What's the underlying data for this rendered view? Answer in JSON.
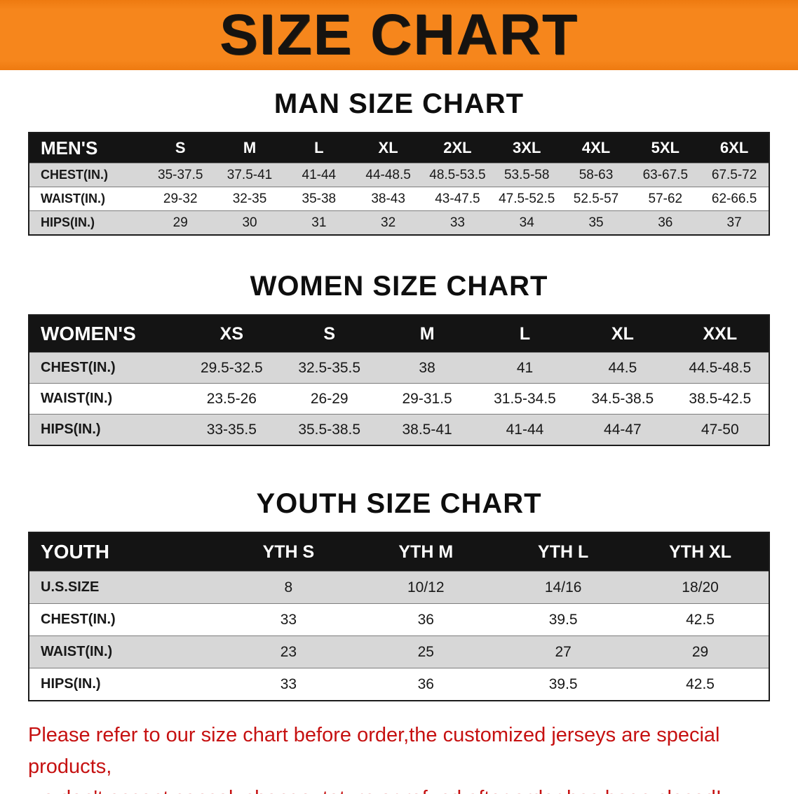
{
  "banner": {
    "title": "SIZE CHART"
  },
  "colors": {
    "banner_bg": "#F6861C",
    "header_bg": "#141414",
    "row_alt": "#D7D7D7",
    "notice_text": "#C61111"
  },
  "sections": [
    {
      "id": "men",
      "heading": "MAN SIZE CHART",
      "table": {
        "header": [
          "MEN'S",
          "S",
          "M",
          "L",
          "XL",
          "2XL",
          "3XL",
          "4XL",
          "5XL",
          "6XL"
        ],
        "rows": [
          [
            "CHEST(IN.)",
            "35-37.5",
            "37.5-41",
            "41-44",
            "44-48.5",
            "48.5-53.5",
            "53.5-58",
            "58-63",
            "63-67.5",
            "67.5-72"
          ],
          [
            "WAIST(IN.)",
            "29-32",
            "32-35",
            "35-38",
            "38-43",
            "43-47.5",
            "47.5-52.5",
            "52.5-57",
            "57-62",
            "62-66.5"
          ],
          [
            "HIPS(IN.)",
            "29",
            "30",
            "31",
            "32",
            "33",
            "34",
            "35",
            "36",
            "37"
          ]
        ]
      }
    },
    {
      "id": "women",
      "heading": "WOMEN SIZE CHART",
      "table": {
        "header": [
          "WOMEN'S",
          "XS",
          "S",
          "M",
          "L",
          "XL",
          "XXL"
        ],
        "rows": [
          [
            "CHEST(IN.)",
            "29.5-32.5",
            "32.5-35.5",
            "38",
            "41",
            "44.5",
            "44.5-48.5"
          ],
          [
            "WAIST(IN.)",
            "23.5-26",
            "26-29",
            "29-31.5",
            "31.5-34.5",
            "34.5-38.5",
            "38.5-42.5"
          ],
          [
            "HIPS(IN.)",
            "33-35.5",
            "35.5-38.5",
            "38.5-41",
            "41-44",
            "44-47",
            "47-50"
          ]
        ]
      }
    },
    {
      "id": "youth",
      "heading": "YOUTH SIZE CHART",
      "table": {
        "header": [
          "YOUTH",
          "YTH S",
          "YTH M",
          "YTH L",
          "YTH XL"
        ],
        "rows": [
          [
            "U.S.SIZE",
            "8",
            "10/12",
            "14/16",
            "18/20"
          ],
          [
            "CHEST(IN.)",
            "33",
            "36",
            "39.5",
            "42.5"
          ],
          [
            "WAIST(IN.)",
            "23",
            "25",
            "27",
            "29"
          ],
          [
            "HIPS(IN.)",
            "33",
            "36",
            "39.5",
            "42.5"
          ]
        ]
      }
    }
  ],
  "footer": {
    "lines": [
      "Please refer to our size chart before order,the customized jerseys are special products,",
      "we don't accept cancel, change, teturn or refund after order has been placed!"
    ]
  }
}
